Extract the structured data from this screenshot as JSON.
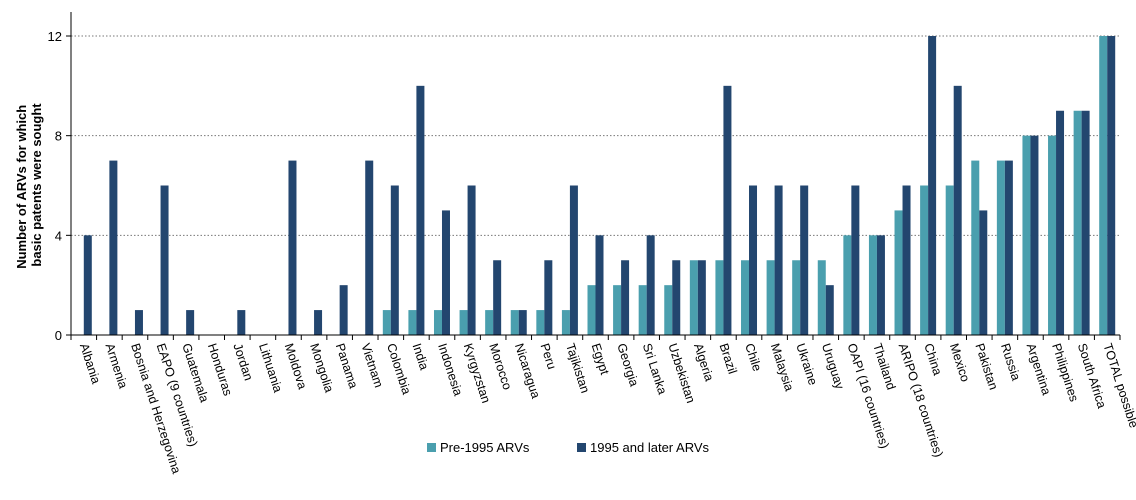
{
  "chart_data": {
    "type": "bar",
    "ylabel_lines": [
      "Number of ARVs for which",
      "basic patents were sought"
    ],
    "ylim": [
      0,
      13
    ],
    "yticks": [
      0,
      4,
      8,
      12
    ],
    "grid": true,
    "legend_position": "bottom",
    "categories": [
      "Albania",
      "Armenia",
      "Bosnia and Herzegovina",
      "EAPO (9 countries)",
      "Guatemala",
      "Honduras",
      "Jordan",
      "Lithuania",
      "Moldova",
      "Mongolia",
      "Panama",
      "Vietnam",
      "Colombia",
      "India",
      "Indonesia",
      "Kyrgyzstan",
      "Morocco",
      "Nicaragua",
      "Peru",
      "Tajikistan",
      "Egypt",
      "Georgia",
      "Sri Lanka",
      "Uzbekistan",
      "Algeria",
      "Brazil",
      "Chile",
      "Malaysia",
      "Ukraine",
      "Uruguay",
      "OAPI (16 countries)",
      "Thailand",
      "ARIPO (18 countries)",
      "China",
      "Mexico",
      "Pakistan",
      "Russia",
      "Argentina",
      "Philippines",
      "South Africa",
      "TOTAL possible"
    ],
    "series": [
      {
        "name": "Pre-1995 ARVs",
        "color": "#4a9fae",
        "values": [
          0,
          0,
          0,
          0,
          0,
          0,
          0,
          0,
          0,
          0,
          0,
          0,
          1,
          1,
          1,
          1,
          1,
          1,
          1,
          1,
          2,
          2,
          2,
          2,
          3,
          3,
          3,
          3,
          3,
          3,
          4,
          4,
          5,
          6,
          6,
          7,
          7,
          8,
          8,
          9,
          12
        ]
      },
      {
        "name": "1995 and later ARVs",
        "color": "#23466f",
        "values": [
          4,
          7,
          1,
          6,
          1,
          0,
          1,
          0,
          7,
          1,
          2,
          7,
          6,
          10,
          5,
          6,
          3,
          1,
          3,
          6,
          4,
          3,
          4,
          3,
          3,
          10,
          6,
          6,
          6,
          2,
          6,
          4,
          6,
          12,
          10,
          5,
          7,
          8,
          9,
          9,
          12
        ]
      }
    ]
  }
}
